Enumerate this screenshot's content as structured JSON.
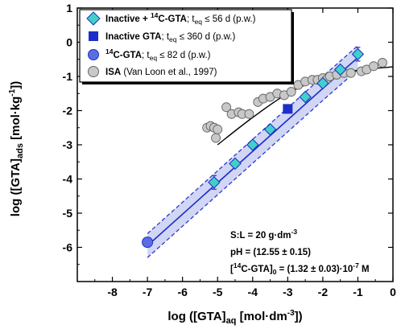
{
  "chart_data": {
    "type": "scatter",
    "xlabel": {
      "main": "log ([GTA]",
      "sub": "aq",
      "unit_pre": " [mol·dm",
      "unit_sup": "-3",
      "unit_post": "])"
    },
    "ylabel": {
      "main": "log ([GTA]",
      "sub": "ads",
      "unit_pre": " [mol·kg",
      "unit_sup": "-1",
      "unit_post": "])"
    },
    "xlim": [
      -9,
      0
    ],
    "ylim": [
      -7,
      1
    ],
    "x_ticks": [
      "-8",
      "-7",
      "-6",
      "-5",
      "-4",
      "-3",
      "-2",
      "-1",
      "0"
    ],
    "y_ticks": [
      "1",
      "0",
      "-1",
      "-2",
      "-3",
      "-4",
      "-5",
      "-6"
    ],
    "x_tick_values": [
      -8,
      -7,
      -6,
      -5,
      -4,
      -3,
      -2,
      -1,
      0
    ],
    "y_tick_values": [
      1,
      0,
      -1,
      -2,
      -3,
      -4,
      -5,
      -6
    ],
    "colors": {
      "diamond": "#40d0c8",
      "square": "#1e2ec8",
      "circle_blue": "#5a6ee0",
      "circle_grey": "#c8c8c8",
      "fit_line": "#1e2ec8",
      "band": "#c8cff2",
      "band_edge": "#2a3ad0"
    },
    "legend": {
      "position": "top-left",
      "entries": [
        {
          "marker": "diamond",
          "bold": "Inactive + ",
          "sup": "14",
          "bold2": "C-GTA",
          "rest": "; t",
          "rest_sub": "eq",
          "rest2": " ≤ 56 d (p.w.)"
        },
        {
          "marker": "square",
          "bold": "Inactive GTA",
          "sup": "",
          "bold2": "",
          "rest": "; t",
          "rest_sub": "eq",
          "rest2": " ≤ 360 d (p.w.)"
        },
        {
          "marker": "circle_blue",
          "bold": "",
          "sup": "14",
          "bold2": "C-GTA",
          "rest": "; t",
          "rest_sub": "eq",
          "rest2": " ≤ 82 d (p.w.)"
        },
        {
          "marker": "circle_grey",
          "bold": "ISA",
          "sup": "",
          "bold2": "",
          "rest": " (Van Loon et al., 1997)",
          "rest_sub": "",
          "rest2": ""
        }
      ]
    },
    "annotation": {
      "line1": {
        "pre": "S:L = 20 g·dm",
        "sup": "-3",
        "post": ""
      },
      "line2": {
        "pre": "pH = (12.55 ± 0.15)",
        "sup": "",
        "post": ""
      },
      "line3": {
        "pre": "[",
        "sup": "14",
        "mid": "C-GTA]",
        "sub": "0",
        "post": " = (1.32 ± 0.03)·10",
        "sup2": "-7",
        "post2": " M"
      }
    },
    "series": [
      {
        "marker": "diamond",
        "points": [
          {
            "x": -5.1,
            "y": -4.1,
            "err": 0.2
          },
          {
            "x": -4.5,
            "y": -3.55,
            "err": 0.1
          },
          {
            "x": -4.0,
            "y": -3.0,
            "err": 0.1
          },
          {
            "x": -3.5,
            "y": -2.55,
            "err": 0.1
          },
          {
            "x": -2.5,
            "y": -1.6,
            "err": 0.1
          },
          {
            "x": -2.0,
            "y": -1.2,
            "err": 0.1
          },
          {
            "x": -1.5,
            "y": -0.8,
            "err": 0.1
          },
          {
            "x": -1.0,
            "y": -0.35,
            "err": 0.2
          }
        ]
      },
      {
        "marker": "square",
        "points": [
          {
            "x": -3.0,
            "y": -1.95,
            "err": 0.12
          }
        ]
      },
      {
        "marker": "circle_blue",
        "points": [
          {
            "x": -7.0,
            "y": -5.85,
            "err": 0.1
          }
        ]
      },
      {
        "marker": "circle_grey",
        "points": [
          {
            "x": -5.3,
            "y": -2.5
          },
          {
            "x": -5.2,
            "y": -2.45
          },
          {
            "x": -5.1,
            "y": -2.5
          },
          {
            "x": -5.05,
            "y": -2.8
          },
          {
            "x": -5.0,
            "y": -2.55
          },
          {
            "x": -4.75,
            "y": -1.9
          },
          {
            "x": -4.6,
            "y": -2.1
          },
          {
            "x": -4.4,
            "y": -2.05
          },
          {
            "x": -4.3,
            "y": -2.1
          },
          {
            "x": -4.1,
            "y": -2.1
          },
          {
            "x": -3.85,
            "y": -1.75
          },
          {
            "x": -3.7,
            "y": -1.65
          },
          {
            "x": -3.5,
            "y": -1.6
          },
          {
            "x": -3.3,
            "y": -1.5
          },
          {
            "x": -3.1,
            "y": -1.55
          },
          {
            "x": -2.9,
            "y": -1.45
          },
          {
            "x": -2.7,
            "y": -1.25
          },
          {
            "x": -2.5,
            "y": -1.15
          },
          {
            "x": -2.3,
            "y": -1.1
          },
          {
            "x": -2.15,
            "y": -1.1
          },
          {
            "x": -2.0,
            "y": -1.05
          },
          {
            "x": -1.9,
            "y": -1.1
          },
          {
            "x": -1.8,
            "y": -1.0
          },
          {
            "x": -1.6,
            "y": -0.95
          },
          {
            "x": -1.4,
            "y": -0.9
          },
          {
            "x": -1.2,
            "y": -0.9
          },
          {
            "x": -0.9,
            "y": -0.85
          },
          {
            "x": -0.75,
            "y": -0.8
          },
          {
            "x": -0.55,
            "y": -0.7
          },
          {
            "x": -0.3,
            "y": -0.6
          }
        ]
      }
    ],
    "fit_line": {
      "points": [
        [
          -7.0,
          -5.95
        ],
        [
          -2.0,
          -1.35
        ],
        [
          -1.0,
          -0.45
        ]
      ],
      "band_halfwidth": 0.35
    },
    "isa_curve": {
      "points": [
        [
          -5.0,
          -3.0
        ],
        [
          -4.0,
          -2.2
        ],
        [
          -3.0,
          -1.5
        ],
        [
          -2.0,
          -1.05
        ],
        [
          -1.0,
          -0.82
        ],
        [
          0.0,
          -0.72
        ]
      ]
    }
  }
}
